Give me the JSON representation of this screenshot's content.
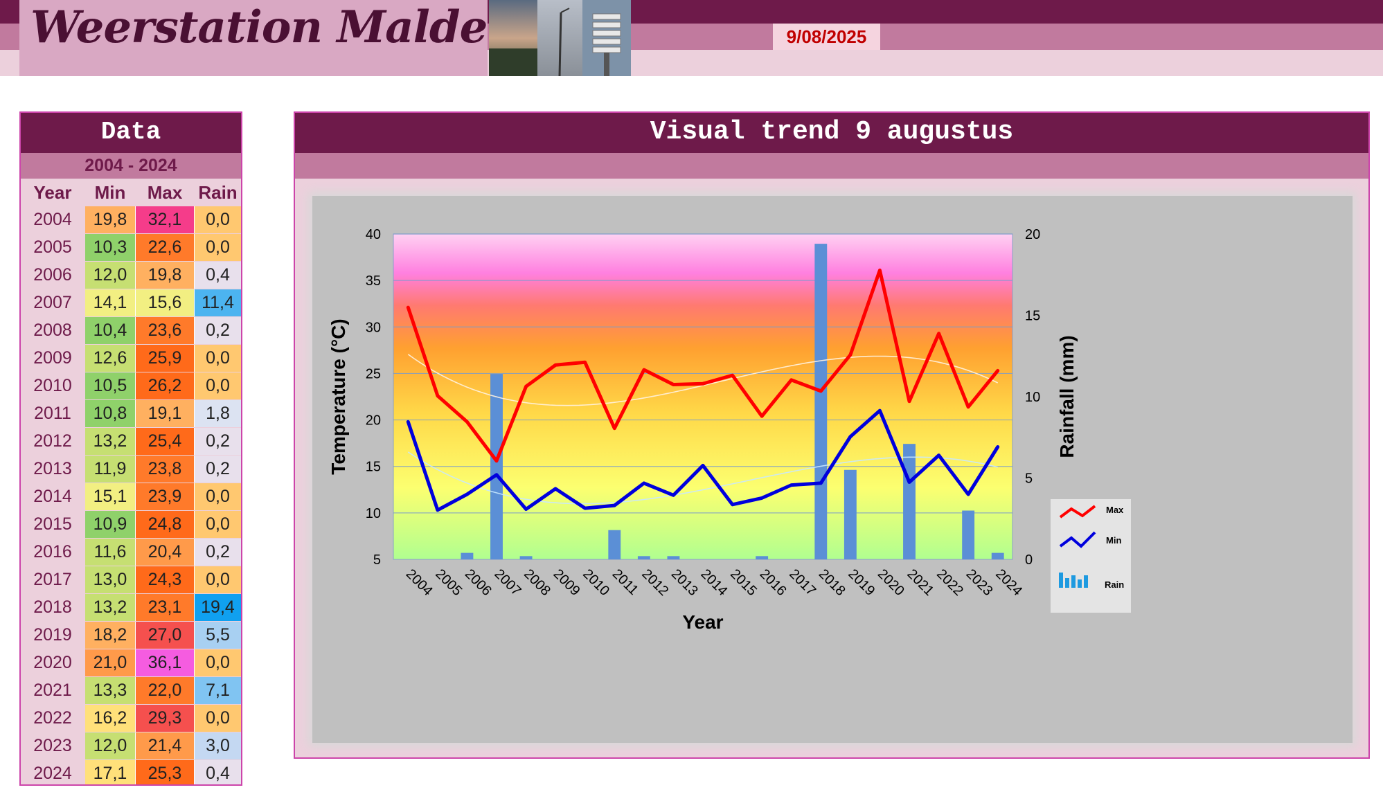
{
  "header": {
    "site_title": "Weerstation Malderen",
    "date": "9/08/2025"
  },
  "data_panel": {
    "title": "Data",
    "range": "2004 - 2024",
    "columns": [
      "Year",
      "Min",
      "Max",
      "Rain"
    ],
    "rows": [
      {
        "year": "2004",
        "min": "19,8",
        "max": "32,1",
        "rain": "0,0"
      },
      {
        "year": "2005",
        "min": "10,3",
        "max": "22,6",
        "rain": "0,0"
      },
      {
        "year": "2006",
        "min": "12,0",
        "max": "19,8",
        "rain": "0,4"
      },
      {
        "year": "2007",
        "min": "14,1",
        "max": "15,6",
        "rain": "11,4"
      },
      {
        "year": "2008",
        "min": "10,4",
        "max": "23,6",
        "rain": "0,2"
      },
      {
        "year": "2009",
        "min": "12,6",
        "max": "25,9",
        "rain": "0,0"
      },
      {
        "year": "2010",
        "min": "10,5",
        "max": "26,2",
        "rain": "0,0"
      },
      {
        "year": "2011",
        "min": "10,8",
        "max": "19,1",
        "rain": "1,8"
      },
      {
        "year": "2012",
        "min": "13,2",
        "max": "25,4",
        "rain": "0,2"
      },
      {
        "year": "2013",
        "min": "11,9",
        "max": "23,8",
        "rain": "0,2"
      },
      {
        "year": "2014",
        "min": "15,1",
        "max": "23,9",
        "rain": "0,0"
      },
      {
        "year": "2015",
        "min": "10,9",
        "max": "24,8",
        "rain": "0,0"
      },
      {
        "year": "2016",
        "min": "11,6",
        "max": "20,4",
        "rain": "0,2"
      },
      {
        "year": "2017",
        "min": "13,0",
        "max": "24,3",
        "rain": "0,0"
      },
      {
        "year": "2018",
        "min": "13,2",
        "max": "23,1",
        "rain": "19,4"
      },
      {
        "year": "2019",
        "min": "18,2",
        "max": "27,0",
        "rain": "5,5"
      },
      {
        "year": "2020",
        "min": "21,0",
        "max": "36,1",
        "rain": "0,0"
      },
      {
        "year": "2021",
        "min": "13,3",
        "max": "22,0",
        "rain": "7,1"
      },
      {
        "year": "2022",
        "min": "16,2",
        "max": "29,3",
        "rain": "0,0"
      },
      {
        "year": "2023",
        "min": "12,0",
        "max": "21,4",
        "rain": "3,0"
      },
      {
        "year": "2024",
        "min": "17,1",
        "max": "25,3",
        "rain": "0,4"
      }
    ]
  },
  "colors": {
    "header_dark": "#6e1a4a",
    "header_mid": "#c17a9e",
    "header_light": "#ecd0dc",
    "max_line": "#ff0000",
    "min_line": "#0000dd",
    "rain_bar": "#5b8fd6",
    "date_text": "#c00000"
  },
  "chart_data": {
    "type": "line",
    "title": "Visual trend 9 augustus",
    "xlabel": "Year",
    "ylabel": "Temperature (°C)",
    "y2label": "Rainfall (mm)",
    "ylim": [
      5,
      40
    ],
    "y2lim": [
      0,
      20
    ],
    "yticks": [
      5,
      10,
      15,
      20,
      25,
      30,
      35,
      40
    ],
    "y2ticks": [
      0,
      5,
      10,
      15,
      20
    ],
    "grid": true,
    "legend_position": "right",
    "categories": [
      "2004",
      "2005",
      "2006",
      "2007",
      "2008",
      "2009",
      "2010",
      "2011",
      "2012",
      "2013",
      "2014",
      "2015",
      "2016",
      "2017",
      "2018",
      "2019",
      "2020",
      "2021",
      "2022",
      "2023",
      "2024"
    ],
    "series": [
      {
        "name": "Max",
        "type": "line",
        "axis": "left",
        "values": [
          32.1,
          22.6,
          19.8,
          15.6,
          23.6,
          25.9,
          26.2,
          19.1,
          25.4,
          23.8,
          23.9,
          24.8,
          20.4,
          24.3,
          23.1,
          27.0,
          36.1,
          22.0,
          29.3,
          21.4,
          25.3
        ]
      },
      {
        "name": "Min",
        "type": "line",
        "axis": "left",
        "values": [
          19.8,
          10.3,
          12.0,
          14.1,
          10.4,
          12.6,
          10.5,
          10.8,
          13.2,
          11.9,
          15.1,
          10.9,
          11.6,
          13.0,
          13.2,
          18.2,
          21.0,
          13.3,
          16.2,
          12.0,
          17.1
        ]
      },
      {
        "name": "Rain",
        "type": "bar",
        "axis": "right",
        "values": [
          0.0,
          0.0,
          0.4,
          11.4,
          0.2,
          0.0,
          0.0,
          1.8,
          0.2,
          0.2,
          0.0,
          0.0,
          0.2,
          0.0,
          19.4,
          5.5,
          0.0,
          7.1,
          0.0,
          3.0,
          0.4
        ]
      }
    ]
  }
}
